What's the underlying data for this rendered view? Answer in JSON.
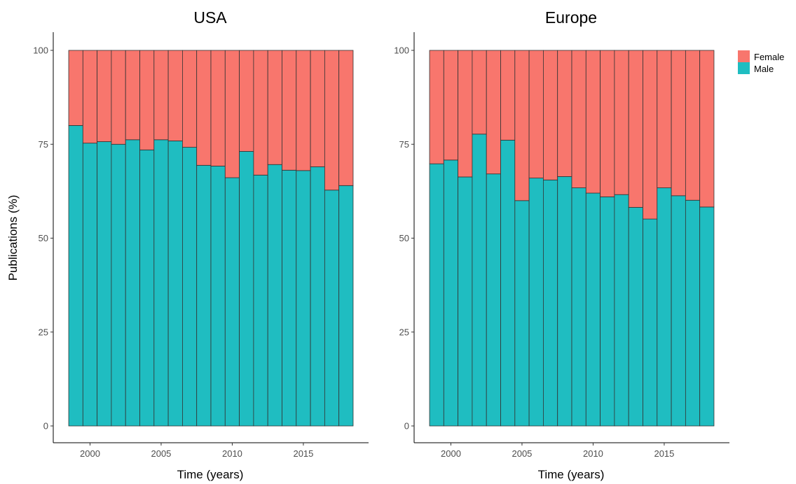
{
  "chart_data": {
    "type": "bar",
    "stacked": true,
    "series_colors": {
      "Female": "#F8766D",
      "Male": "#1FBDC1"
    },
    "bar_edge_color": "#333333",
    "grid": false,
    "legend": {
      "position": "right",
      "entries": [
        "Female",
        "Male"
      ]
    },
    "panels": [
      {
        "title": "USA",
        "xlabel": "Time (years)",
        "ylabel": "Publications (%)",
        "xticks": [
          2000,
          2005,
          2010,
          2015
        ],
        "yticks": [
          0,
          25,
          50,
          75,
          100
        ],
        "ylim": [
          0,
          100
        ],
        "x": [
          1999,
          2000,
          2001,
          2002,
          2003,
          2004,
          2005,
          2006,
          2007,
          2008,
          2009,
          2010,
          2011,
          2012,
          2013,
          2014,
          2015,
          2016,
          2017,
          2018
        ],
        "series": [
          {
            "name": "Male",
            "values": [
              80,
              75.3,
              75.7,
              75,
              76.2,
              73.5,
              76.2,
              75.9,
              74.2,
              69.4,
              69.2,
              66.1,
              73.1,
              66.8,
              69.6,
              68.1,
              68,
              69,
              62.8,
              64
            ]
          },
          {
            "name": "Female",
            "values": [
              20,
              24.7,
              24.3,
              25,
              23.8,
              26.5,
              23.8,
              24.1,
              25.8,
              30.6,
              30.8,
              33.9,
              26.9,
              33.2,
              30.4,
              31.9,
              32,
              31,
              37.2,
              36
            ]
          }
        ]
      },
      {
        "title": "Europe",
        "xlabel": "Time (years)",
        "ylabel": "",
        "xticks": [
          2000,
          2005,
          2010,
          2015
        ],
        "yticks": [
          0,
          25,
          50,
          75,
          100
        ],
        "ylim": [
          0,
          100
        ],
        "x": [
          1999,
          2000,
          2001,
          2002,
          2003,
          2004,
          2005,
          2006,
          2007,
          2008,
          2009,
          2010,
          2011,
          2012,
          2013,
          2014,
          2015,
          2016,
          2017,
          2018
        ],
        "series": [
          {
            "name": "Male",
            "values": [
              69.8,
              70.8,
              66.3,
              77.7,
              67.1,
              76.1,
              60,
              66,
              65.5,
              66.4,
              63.4,
              62,
              61,
              61.6,
              58.2,
              55.1,
              63.4,
              61.3,
              60.1,
              58.3
            ]
          },
          {
            "name": "Female",
            "values": [
              30.2,
              29.2,
              33.7,
              22.3,
              32.9,
              23.9,
              40,
              34,
              34.5,
              33.6,
              36.6,
              38,
              39,
              38.4,
              41.8,
              44.9,
              36.6,
              38.7,
              39.9,
              41.7
            ]
          }
        ]
      }
    ]
  }
}
